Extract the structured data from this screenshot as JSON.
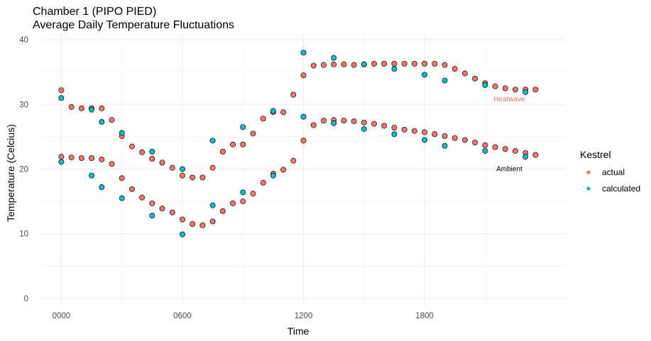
{
  "chart_data": {
    "type": "scatter",
    "title": "Chamber 1 (PIPO PIED)",
    "subtitle": "Average Daily Temperature Fluctuations",
    "xlabel": "Time",
    "ylabel": "Temperature (Celcius)",
    "xlim": [
      -1,
      25
    ],
    "ylim": [
      -1,
      41
    ],
    "x_ticks": [
      0,
      6,
      12,
      18
    ],
    "x_tick_labels": [
      "0000",
      "0600",
      "1200",
      "1800"
    ],
    "y_ticks": [
      0,
      10,
      20,
      30,
      40
    ],
    "grid": true,
    "legend": {
      "title": "Kestrel",
      "position": "right",
      "entries": [
        {
          "label": "actual",
          "color": "#F8766D"
        },
        {
          "label": "calculated",
          "color": "#00BFC4"
        }
      ]
    },
    "annotations": [
      {
        "text": "Heatwave",
        "x": 22.2,
        "y": 30.8,
        "color": "#F8766D"
      },
      {
        "text": "Ambient",
        "x": 22.2,
        "y": 20,
        "color": "#000000"
      }
    ],
    "series": [
      {
        "name": "actual",
        "color": "#F8766D",
        "x": [
          0,
          0.5,
          1,
          1.5,
          2,
          2.5,
          3,
          3.5,
          4,
          4.5,
          5,
          5.5,
          6,
          6.5,
          7,
          7.5,
          8,
          8.5,
          9,
          9.5,
          10,
          10.5,
          11,
          11.5,
          12,
          12.5,
          13,
          13.5,
          14,
          14.5,
          15,
          15.5,
          16,
          16.5,
          17,
          17.5,
          18,
          18.5,
          19,
          19.5,
          20,
          20.5,
          21,
          21.5,
          22,
          22.5,
          23,
          23.5,
          0,
          0.5,
          1,
          1.5,
          2,
          2.5,
          3,
          3.5,
          4,
          4.5,
          5,
          5.5,
          6,
          6.5,
          7,
          7.5,
          8,
          8.5,
          9,
          9.5,
          10,
          10.5,
          11,
          11.5,
          12,
          12.5,
          13,
          13.5,
          14,
          14.5,
          15,
          15.5,
          16,
          16.5,
          17,
          17.5,
          18,
          18.5,
          19,
          19.5,
          20,
          20.5,
          21,
          21.5,
          22,
          22.5,
          23,
          23.5
        ],
        "y": [
          32.2,
          29.6,
          29.4,
          29.4,
          29.4,
          27.6,
          25.1,
          23.5,
          22.6,
          21.6,
          21.0,
          20.2,
          19.0,
          18.7,
          18.7,
          20.2,
          22.7,
          23.8,
          23.8,
          25.5,
          27.8,
          28.8,
          28.8,
          31.5,
          34.5,
          36.0,
          36.1,
          36.2,
          36.2,
          36.1,
          36.2,
          36.3,
          36.3,
          36.3,
          36.3,
          36.3,
          36.3,
          36.3,
          36.1,
          35.5,
          34.8,
          34.0,
          33.3,
          32.8,
          32.5,
          32.3,
          32.3,
          32.3,
          21.9,
          21.8,
          21.7,
          21.7,
          21.5,
          20.8,
          18.6,
          16.9,
          15.6,
          14.7,
          13.9,
          13.3,
          12.2,
          11.5,
          11.3,
          11.9,
          13.5,
          14.7,
          15.0,
          16.2,
          17.9,
          19.3,
          19.9,
          21.3,
          24.4,
          26.8,
          27.5,
          27.6,
          27.5,
          27.4,
          27.2,
          27.0,
          26.7,
          26.4,
          26.1,
          25.9,
          25.7,
          25.4,
          25.1,
          24.8,
          24.5,
          24.1,
          23.7,
          23.4,
          23.1,
          22.8,
          22.5,
          22.2
        ]
      },
      {
        "name": "calculated",
        "color": "#00BFC4",
        "x": [
          0,
          1.5,
          2,
          3,
          4.5,
          6,
          7.5,
          9,
          10.5,
          12,
          13.5,
          15,
          16.5,
          18,
          19,
          21,
          23,
          0,
          1.5,
          2,
          3,
          4.5,
          6,
          7.5,
          9,
          10.5,
          12,
          13.5,
          15,
          16.5,
          18,
          19,
          21,
          23
        ],
        "y": [
          31.0,
          29.2,
          27.3,
          25.6,
          22.7,
          20.0,
          24.4,
          26.5,
          29.0,
          38.0,
          37.2,
          36.2,
          35.5,
          34.6,
          33.7,
          33.0,
          31.9,
          21.1,
          19.0,
          17.2,
          15.5,
          12.8,
          9.9,
          14.4,
          16.4,
          19.0,
          28.1,
          27.1,
          26.2,
          25.4,
          24.5,
          23.6,
          22.8,
          21.9
        ]
      }
    ]
  }
}
